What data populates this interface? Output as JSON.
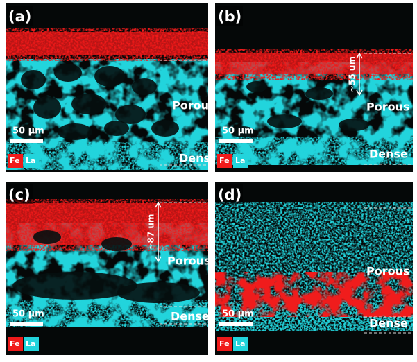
{
  "panels": [
    {
      "label": "(a)",
      "porous": "Porous",
      "dense": "Dense",
      "scale_bar": "50 μm",
      "legend": [
        "Fe",
        "La"
      ]
    },
    {
      "label": "(b)",
      "porous": "Porous",
      "dense": "Dense",
      "scale_bar": "50 μm",
      "legend": [
        "Fe",
        "La"
      ],
      "thickness": "~55 um"
    },
    {
      "label": "(c)",
      "porous": "Porous",
      "dense": "Dense",
      "scale_bar": "50 μm",
      "legend": [
        "Fe",
        "La"
      ],
      "thickness": "~87 um"
    },
    {
      "label": "(d)",
      "porous": "Porous",
      "dense": "Dense",
      "scale_bar": "50 μm",
      "legend": [
        "Fe",
        "La"
      ]
    }
  ]
}
